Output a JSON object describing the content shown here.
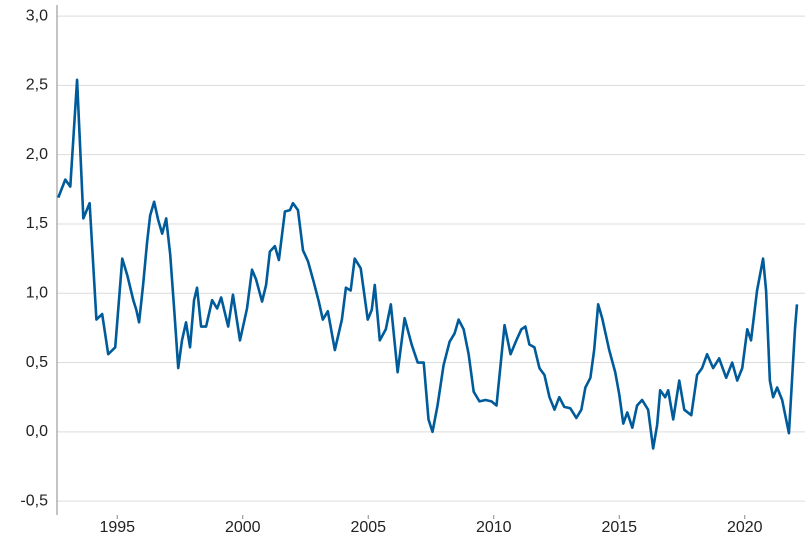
{
  "chart_data": {
    "type": "line",
    "x": [
      1992.65,
      1992.93,
      1993.13,
      1993.4,
      1993.65,
      1993.9,
      1994.17,
      1994.4,
      1994.64,
      1994.92,
      1995.2,
      1995.4,
      1995.64,
      1995.76,
      1995.87,
      1996.03,
      1996.19,
      1996.31,
      1996.47,
      1996.63,
      1996.79,
      1996.95,
      1997.11,
      1997.27,
      1997.43,
      1997.58,
      1997.74,
      1997.9,
      1998.06,
      1998.18,
      1998.34,
      1998.54,
      1998.78,
      1998.98,
      1999.14,
      1999.42,
      1999.61,
      1999.89,
      2000.17,
      2000.37,
      2000.53,
      2000.77,
      2000.93,
      2001.08,
      2001.28,
      2001.44,
      2001.68,
      2001.88,
      2002.0,
      2002.2,
      2002.4,
      2002.6,
      2002.83,
      2003.03,
      2003.19,
      2003.39,
      2003.67,
      2003.95,
      2004.11,
      2004.3,
      2004.46,
      2004.7,
      2004.98,
      2005.14,
      2005.26,
      2005.46,
      2005.7,
      2005.9,
      2006.17,
      2006.45,
      2006.73,
      2006.97,
      2007.21,
      2007.4,
      2007.56,
      2007.76,
      2008.0,
      2008.24,
      2008.44,
      2008.6,
      2008.8,
      2009.0,
      2009.2,
      2009.43,
      2009.67,
      2009.91,
      2010.11,
      2010.27,
      2010.43,
      2010.67,
      2010.9,
      2011.1,
      2011.26,
      2011.42,
      2011.62,
      2011.82,
      2012.02,
      2012.22,
      2012.42,
      2012.61,
      2012.81,
      2013.05,
      2013.29,
      2013.49,
      2013.65,
      2013.85,
      2014.0,
      2014.16,
      2014.32,
      2014.6,
      2014.84,
      2015.0,
      2015.16,
      2015.32,
      2015.52,
      2015.71,
      2015.91,
      2016.15,
      2016.35,
      2016.51,
      2016.63,
      2016.83,
      2016.95,
      2017.15,
      2017.39,
      2017.59,
      2017.87,
      2018.1,
      2018.3,
      2018.5,
      2018.74,
      2018.98,
      2019.26,
      2019.5,
      2019.7,
      2019.9,
      2020.1,
      2020.25,
      2020.49,
      2020.73,
      2020.85,
      2021.0,
      2021.13,
      2021.29,
      2021.49,
      2021.76,
      2022.0,
      2022.08
    ],
    "series": [
      {
        "color": "#005b9a",
        "values": [
          1.69,
          1.82,
          1.77,
          2.54,
          1.54,
          1.65,
          0.81,
          0.85,
          0.56,
          0.61,
          1.25,
          1.13,
          0.95,
          0.88,
          0.79,
          1.06,
          1.37,
          1.56,
          1.66,
          1.53,
          1.43,
          1.54,
          1.28,
          0.88,
          0.46,
          0.66,
          0.79,
          0.61,
          0.95,
          1.04,
          0.76,
          0.76,
          0.95,
          0.89,
          0.97,
          0.76,
          0.99,
          0.66,
          0.89,
          1.17,
          1.1,
          0.94,
          1.06,
          1.3,
          1.34,
          1.24,
          1.59,
          1.6,
          1.65,
          1.6,
          1.31,
          1.23,
          1.08,
          0.94,
          0.81,
          0.87,
          0.59,
          0.81,
          1.04,
          1.02,
          1.25,
          1.18,
          0.81,
          0.88,
          1.06,
          0.66,
          0.74,
          0.92,
          0.43,
          0.82,
          0.63,
          0.5,
          0.5,
          0.09,
          0.0,
          0.19,
          0.48,
          0.65,
          0.71,
          0.81,
          0.74,
          0.56,
          0.29,
          0.22,
          0.23,
          0.22,
          0.19,
          0.48,
          0.77,
          0.56,
          0.66,
          0.74,
          0.76,
          0.63,
          0.61,
          0.46,
          0.41,
          0.25,
          0.16,
          0.25,
          0.18,
          0.17,
          0.1,
          0.16,
          0.32,
          0.39,
          0.59,
          0.92,
          0.82,
          0.59,
          0.43,
          0.27,
          0.06,
          0.14,
          0.03,
          0.19,
          0.23,
          0.16,
          -0.12,
          0.05,
          0.3,
          0.25,
          0.3,
          0.09,
          0.37,
          0.16,
          0.12,
          0.41,
          0.46,
          0.56,
          0.46,
          0.53,
          0.39,
          0.5,
          0.37,
          0.46,
          0.74,
          0.66,
          1.02,
          1.25,
          1.02,
          0.37,
          0.25,
          0.32,
          0.23,
          -0.01,
          0.74,
          0.92
        ]
      }
    ],
    "xlim": [
      1992.6,
      2022.4
    ],
    "xticks": [
      1995,
      2000,
      2005,
      2010,
      2015,
      2020
    ],
    "ylim": [
      -0.6,
      3.08
    ],
    "yticks": [
      {
        "value": -0.5,
        "label": "-0,5"
      },
      {
        "value": 0,
        "label": "0,0"
      },
      {
        "value": 0.5,
        "label": "0,5"
      },
      {
        "value": 1,
        "label": "1,0"
      },
      {
        "value": 1.5,
        "label": "1,5"
      },
      {
        "value": 2,
        "label": "2,0"
      },
      {
        "value": 2.5,
        "label": "2,5"
      },
      {
        "value": 3,
        "label": "3,0"
      }
    ],
    "grid": true
  }
}
